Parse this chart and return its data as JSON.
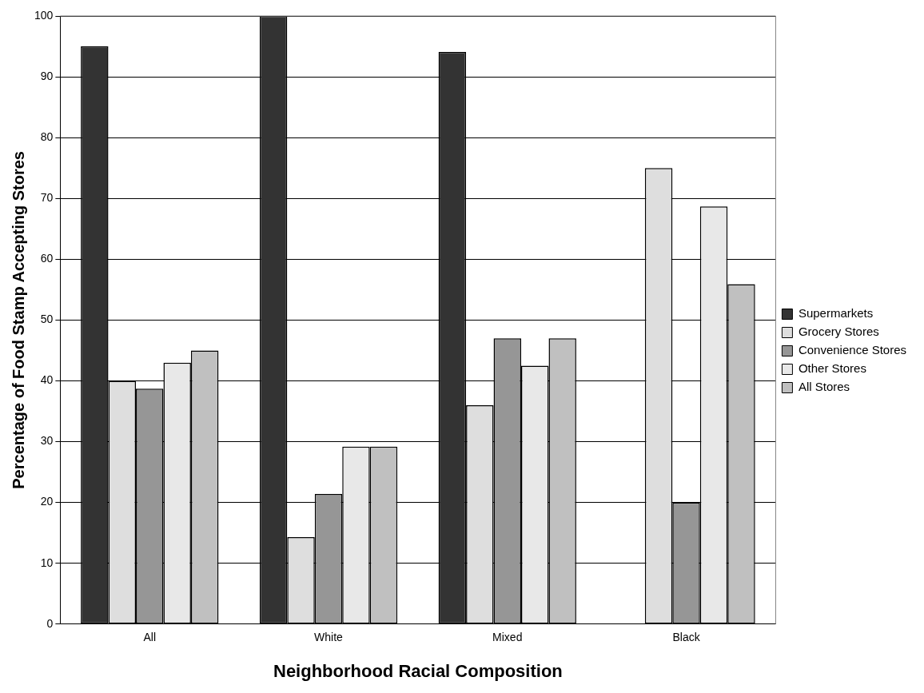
{
  "chart_data": {
    "type": "bar",
    "xlabel": "Neighborhood Racial Composition",
    "ylabel": "Percentage of Food Stamp Accepting Stores",
    "categories": [
      "All",
      "White",
      "Mixed",
      "Black"
    ],
    "series": [
      {
        "name": "Supermarkets",
        "color": "#333333",
        "values": [
          95,
          100,
          94.1,
          0
        ]
      },
      {
        "name": "Grocery Stores",
        "color": "#dedede",
        "values": [
          40,
          14.3,
          36,
          75
        ]
      },
      {
        "name": "Convenience Stores",
        "color": "#969696",
        "values": [
          38.7,
          21.4,
          47,
          20
        ]
      },
      {
        "name": "Other Stores",
        "color": "#e8e8e8",
        "values": [
          43,
          29.2,
          42.5,
          68.7
        ]
      },
      {
        "name": "All Stores",
        "color": "#c0c0c0",
        "values": [
          45,
          29.2,
          47,
          55.9
        ]
      }
    ],
    "ylim": [
      0,
      100
    ],
    "yticks": [
      0,
      10,
      20,
      30,
      40,
      50,
      60,
      70,
      80,
      90,
      100
    ],
    "grid": "y",
    "legend": "right"
  }
}
